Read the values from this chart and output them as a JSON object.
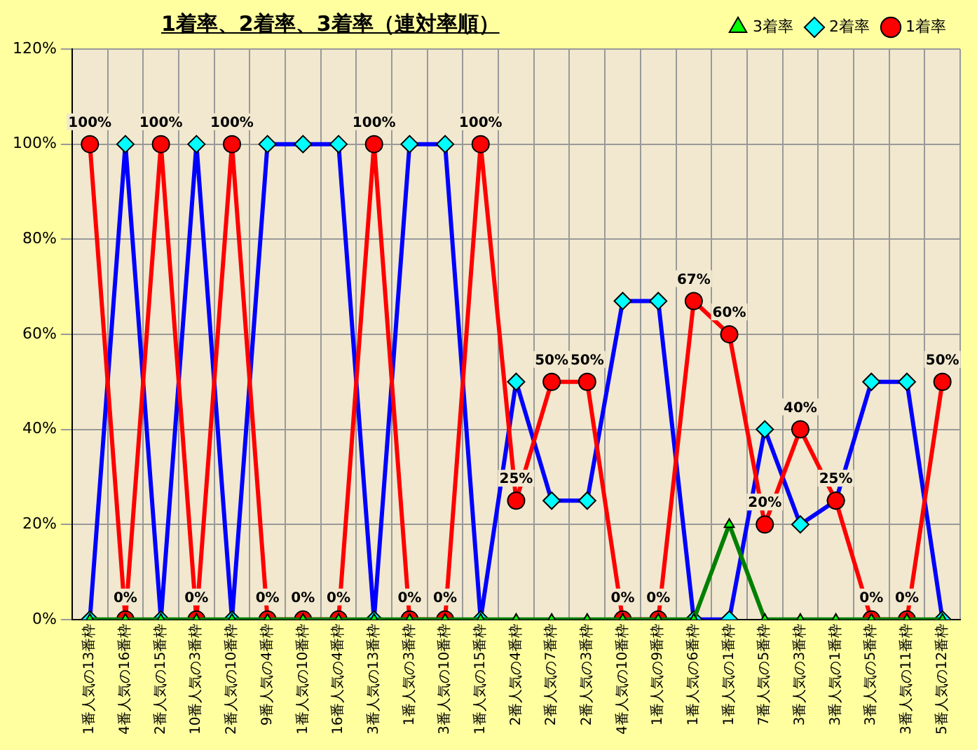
{
  "chart_data": {
    "type": "line",
    "title": "1着率、2着率、3着率（連対率順）",
    "categories": [
      "1番人気の13番枠",
      "4番人気の16番枠",
      "2番人気の15番枠",
      "10番人気の3番枠",
      "2番人気の10番枠",
      "9番人気の4番枠",
      "1番人気の10番枠",
      "16番人気の4番枠",
      "3番人気の13番枠",
      "1番人気の3番枠",
      "3番人気の10番枠",
      "1番人気の15番枠",
      "2番人気の4番枠",
      "2番人気の7番枠",
      "2番人気の3番枠",
      "4番人気の10番枠",
      "1番人気の9番枠",
      "1番人気の6番枠",
      "1番人気の1番枠",
      "7番人気の5番枠",
      "3番人気の3番枠",
      "3番人気の1番枠",
      "3番人気の5番枠",
      "3番人気の11番枠",
      "5番人気の12番枠"
    ],
    "series": [
      {
        "name": "3着率",
        "color": "#008000",
        "marker": "triangle",
        "values": [
          0,
          0,
          0,
          0,
          0,
          0,
          0,
          0,
          0,
          0,
          0,
          0,
          0,
          0,
          0,
          0,
          0,
          0,
          20,
          0,
          0,
          0,
          0,
          0,
          0
        ]
      },
      {
        "name": "2着率",
        "color": "#0000ff",
        "marker": "diamond",
        "values": [
          0,
          100,
          0,
          100,
          0,
          100,
          100,
          100,
          0,
          100,
          100,
          0,
          50,
          25,
          25,
          67,
          67,
          0,
          0,
          40,
          20,
          25,
          50,
          50,
          0
        ]
      },
      {
        "name": "1着率",
        "color": "#ff0000",
        "marker": "circle",
        "values": [
          100,
          0,
          100,
          0,
          100,
          0,
          0,
          0,
          100,
          0,
          0,
          100,
          25,
          50,
          50,
          0,
          0,
          67,
          60,
          20,
          40,
          25,
          0,
          0,
          50
        ],
        "value_labels": [
          "100%",
          "0%",
          "100%",
          "0%",
          "100%",
          "0%",
          "0%",
          "0%",
          "100%",
          "0%",
          "0%",
          "100%",
          "25%",
          "50%",
          "50%",
          "0%",
          "0%",
          "67%",
          "60%",
          "20%",
          "40%",
          "25%",
          "0%",
          "0%",
          "50%"
        ]
      }
    ],
    "ylim": [
      0,
      120
    ],
    "yticks": [
      {
        "value": 0,
        "label": "0%"
      },
      {
        "value": 20,
        "label": "20%"
      },
      {
        "value": 40,
        "label": "40%"
      },
      {
        "value": 60,
        "label": "60%"
      },
      {
        "value": 80,
        "label": "80%"
      },
      {
        "value": 100,
        "label": "100%"
      },
      {
        "value": 120,
        "label": "120%"
      }
    ],
    "grid": true,
    "legend": "top right"
  }
}
